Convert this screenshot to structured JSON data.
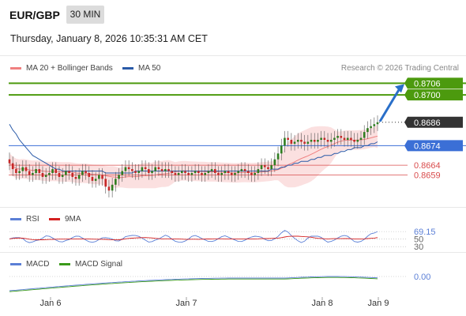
{
  "header": {
    "symbol": "EUR/GBP",
    "timeframe": "30 MIN",
    "datetime": "Thursday, January 8, 2026 10:35:31 AM CET"
  },
  "main": {
    "legend": [
      {
        "label": "MA 20 + Bollinger Bands",
        "color": "#f08080"
      },
      {
        "label": "MA 50",
        "color": "#2a5aa8"
      }
    ],
    "credit": "Research © 2026 Trading Central"
  },
  "rsi": {
    "legend": [
      {
        "label": "RSI",
        "color": "#5b7fd6"
      },
      {
        "label": "9MA",
        "color": "#d42020"
      }
    ]
  },
  "macd": {
    "legend": [
      {
        "label": "MACD",
        "color": "#5b7fd6"
      },
      {
        "label": "MACD Signal",
        "color": "#3a9a1a"
      }
    ]
  },
  "colors": {
    "up": "#2e7d1f",
    "down": "#c62828",
    "target": "#4c9a0e",
    "support": "#3b6fd6",
    "resistance": "#d94c4c",
    "current": "#333333",
    "band": "#fadada",
    "ma20": "#f08080",
    "ma50": "#2a5aa8",
    "arrow": "#2a6fc9"
  },
  "chart_data": [
    {
      "type": "candlestick",
      "title": "EUR/GBP 30 MIN",
      "ylim": [
        0.8643,
        0.8711
      ],
      "x_ticks": [
        "Jan 6",
        "Jan 7",
        "Jan 8",
        "Jan 9"
      ],
      "price_levels": [
        {
          "value": 0.8706,
          "label": "0.8706",
          "kind": "target"
        },
        {
          "value": 0.87,
          "label": "0.8700",
          "kind": "target"
        },
        {
          "value": 0.8686,
          "label": "0.8686",
          "kind": "current"
        },
        {
          "value": 0.8674,
          "label": "0.8674",
          "kind": "pivot"
        },
        {
          "value": 0.8664,
          "label": "0.8664",
          "kind": "support"
        },
        {
          "value": 0.8659,
          "label": "0.8659",
          "kind": "support"
        }
      ],
      "close": [
        0.8665,
        0.8662,
        0.866,
        0.8661,
        0.8663,
        0.8661,
        0.8659,
        0.866,
        0.8662,
        0.866,
        0.8658,
        0.8659,
        0.866,
        0.8662,
        0.866,
        0.8658,
        0.8659,
        0.8661,
        0.866,
        0.8658,
        0.8657,
        0.8659,
        0.8661,
        0.866,
        0.8658,
        0.8656,
        0.8657,
        0.8659,
        0.8657,
        0.8653,
        0.8651,
        0.8654,
        0.8657,
        0.8659,
        0.8661,
        0.8663,
        0.8662,
        0.8661,
        0.866,
        0.8661,
        0.8663,
        0.8662,
        0.866,
        0.8661,
        0.8663,
        0.8662,
        0.8661,
        0.8662,
        0.8661,
        0.866,
        0.8659,
        0.866,
        0.8661,
        0.866,
        0.8659,
        0.866,
        0.8661,
        0.866,
        0.8659,
        0.866,
        0.8661,
        0.8662,
        0.866,
        0.8659,
        0.866,
        0.8661,
        0.866,
        0.8659,
        0.866,
        0.8661,
        0.8662,
        0.8661,
        0.866,
        0.8659,
        0.866,
        0.8662,
        0.8664,
        0.8663,
        0.8662,
        0.8664,
        0.8667,
        0.867,
        0.8674,
        0.8678,
        0.8677,
        0.8675,
        0.8676,
        0.8677,
        0.8676,
        0.8675,
        0.8676,
        0.8677,
        0.8676,
        0.8677,
        0.8678,
        0.8677,
        0.8676,
        0.8677,
        0.8678,
        0.8679,
        0.8678,
        0.8677,
        0.8678,
        0.8677,
        0.8676,
        0.8677,
        0.8678,
        0.8681,
        0.8683,
        0.8684,
        0.8685,
        0.8686
      ],
      "ma50": [
        0.8685,
        0.8682,
        0.868,
        0.8677,
        0.8675,
        0.8673,
        0.8671,
        0.8669,
        0.8668,
        0.8667,
        0.8666,
        0.8665,
        0.8664,
        0.8663,
        0.8662,
        0.8662,
        0.8661,
        0.8661,
        0.8661,
        0.8661,
        0.8661,
        0.8661,
        0.8661,
        0.8661,
        0.8661,
        0.8661,
        0.8661,
        0.8661,
        0.8661,
        0.866,
        0.866,
        0.866,
        0.866,
        0.866,
        0.866,
        0.866,
        0.866,
        0.866,
        0.8661,
        0.8661,
        0.8661,
        0.8661,
        0.8661,
        0.8661,
        0.8661,
        0.8661,
        0.8661,
        0.8661,
        0.8661,
        0.8661,
        0.8661,
        0.8661,
        0.8661,
        0.8661,
        0.8661,
        0.8661,
        0.8661,
        0.8661,
        0.8661,
        0.8661,
        0.8661,
        0.8661,
        0.8661,
        0.8661,
        0.8661,
        0.8661,
        0.8661,
        0.8661,
        0.8661,
        0.8661,
        0.8661,
        0.8661,
        0.8661,
        0.8661,
        0.8661,
        0.8661,
        0.8661,
        0.8661,
        0.8661,
        0.8662,
        0.8662,
        0.8662,
        0.8663,
        0.8663,
        0.8664,
        0.8664,
        0.8665,
        0.8665,
        0.8666,
        0.8666,
        0.8666,
        0.8667,
        0.8667,
        0.8668,
        0.8668,
        0.8669,
        0.8669,
        0.8669,
        0.867,
        0.867,
        0.8671,
        0.8671,
        0.8672,
        0.8672,
        0.8673,
        0.8673,
        0.8673,
        0.8674,
        0.8674,
        0.8675,
        0.8675,
        0.8676
      ]
    },
    {
      "type": "line",
      "title": "RSI",
      "ylim": [
        20,
        90
      ],
      "last_value": 69.15,
      "y_ticks": [
        69.15,
        50,
        30
      ],
      "y_tick_labels": [
        "69.15",
        "50",
        "30"
      ]
    },
    {
      "type": "line",
      "title": "MACD",
      "last_value": 0.0,
      "y_tick_labels": [
        "0.00"
      ]
    }
  ]
}
